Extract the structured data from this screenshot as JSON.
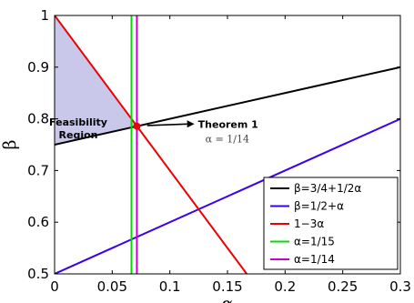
{
  "chart_data": {
    "type": "line",
    "xlabel": "α",
    "ylabel": "β",
    "xlim": [
      0,
      0.3
    ],
    "ylim": [
      0.5,
      1.0
    ],
    "xticks": [
      "0",
      "0.05",
      "0.1",
      "0.15",
      "0.2",
      "0.25",
      "0.3"
    ],
    "yticks": [
      "0.5",
      "0.6",
      "0.7",
      "0.8",
      "0.9",
      "1"
    ],
    "grid": false,
    "legend_position": "bottom-right",
    "series": [
      {
        "name": "β=3/4+1/2α",
        "color": "#000000",
        "kind": "line",
        "x": [
          0,
          0.3
        ],
        "y": [
          0.75,
          0.9
        ]
      },
      {
        "name": "β=1/2+α",
        "color": "#3a00f0",
        "kind": "line",
        "x": [
          0,
          0.3
        ],
        "y": [
          0.5,
          0.8
        ]
      },
      {
        "name": "1−3α",
        "color": "#ee0000",
        "kind": "line",
        "x": [
          0,
          0.1667
        ],
        "y": [
          1.0,
          0.5
        ]
      },
      {
        "name": "α=1/15",
        "color": "#00dd00",
        "kind": "vline",
        "x": [
          0.0667,
          0.0667
        ],
        "y": [
          0.5,
          1.0
        ]
      },
      {
        "name": "α=1/14",
        "color": "#cc00cc",
        "kind": "vline",
        "x": [
          0.0714,
          0.0714
        ],
        "y": [
          0.5,
          1.0
        ]
      }
    ],
    "region": {
      "label_line1": "Feasibility",
      "label_line2": "Region",
      "fill": "#c9c7ea",
      "x": [
        0,
        0.0714,
        0
      ],
      "y": [
        1.0,
        0.7857,
        0.75
      ]
    },
    "point": {
      "x": 0.0714,
      "y": 0.7857,
      "color": "#ee0000"
    },
    "annotation": {
      "text": "Theorem 1",
      "subtext": "α = 1/14",
      "arrow_from": [
        0.115,
        0.79
      ],
      "arrow_to": [
        0.074,
        0.787
      ]
    }
  }
}
